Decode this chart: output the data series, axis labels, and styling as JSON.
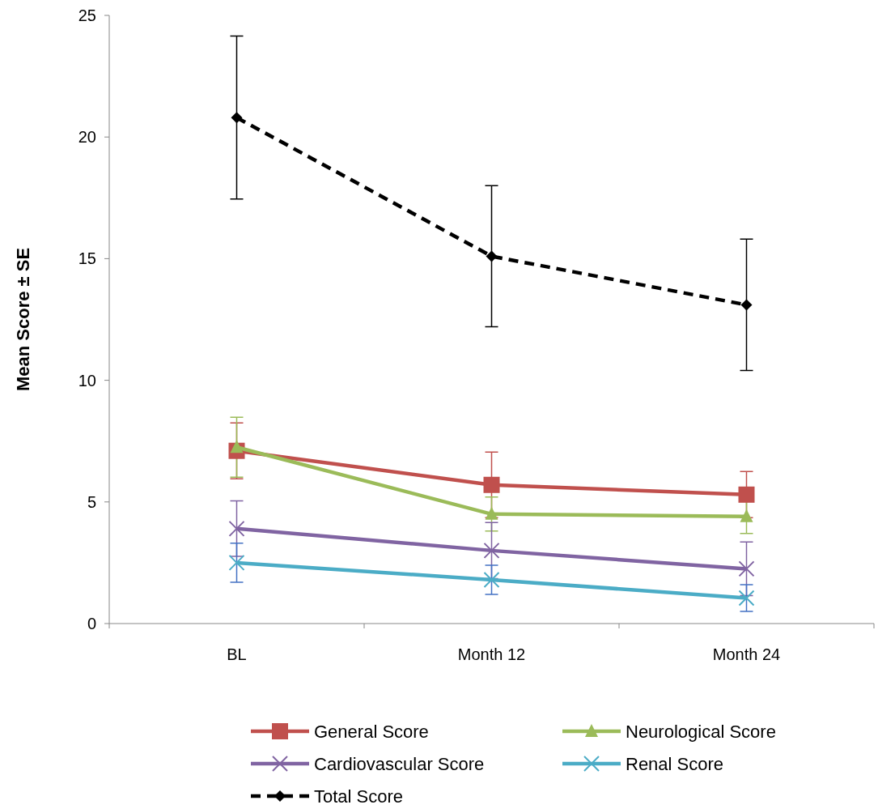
{
  "chart_data": {
    "type": "line",
    "ylabel": "Mean Score ± SE",
    "categories": [
      "BL",
      "Month 12",
      "Month 24"
    ],
    "ylim": [
      0,
      25
    ],
    "yticks": [
      0,
      5,
      10,
      15,
      20,
      25
    ],
    "legend": "bottom",
    "series": [
      {
        "name": "General Score",
        "color": "#c0504d",
        "marker": "square",
        "values": [
          7.1,
          5.7,
          5.3
        ],
        "errors": [
          1.15,
          1.35,
          0.95
        ]
      },
      {
        "name": "Neurological Score",
        "color": "#9bbb59",
        "marker": "triangle",
        "values": [
          7.25,
          4.5,
          4.4
        ],
        "errors": [
          1.23,
          0.7,
          0.7
        ]
      },
      {
        "name": "Cardiovascular Score",
        "color": "#8064a2",
        "marker": "cross",
        "values": [
          3.9,
          3.0,
          2.25
        ],
        "errors": [
          1.14,
          1.15,
          1.1
        ]
      },
      {
        "name": "Renal Score",
        "color": "#4bacc6",
        "marker": "cross",
        "values": [
          2.5,
          1.8,
          1.05
        ],
        "errors": [
          0.8,
          0.6,
          0.55
        ]
      },
      {
        "name": "Total Score",
        "color": "#000000",
        "marker": "diamond",
        "line_style": "dashed",
        "values": [
          20.8,
          15.1,
          13.1
        ],
        "errors": [
          3.35,
          2.9,
          2.7
        ]
      }
    ]
  }
}
